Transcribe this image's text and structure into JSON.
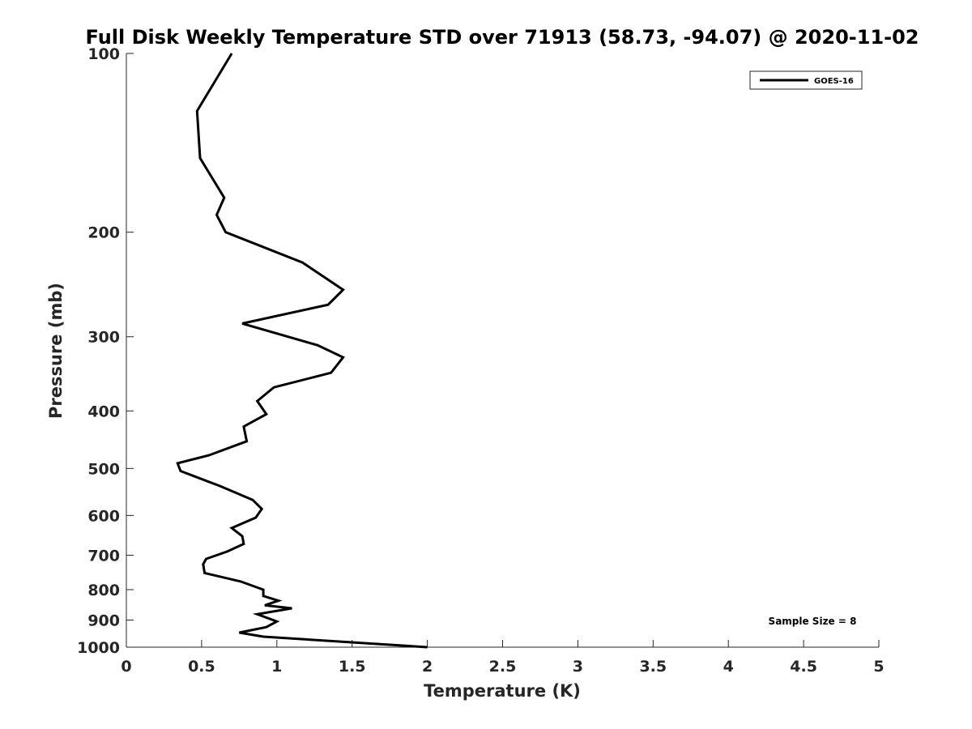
{
  "chart_data": {
    "type": "line",
    "title": "Full Disk Weekly Temperature STD over 71913 (58.73, -94.07) @ 2020-11-02",
    "xlabel": "Temperature (K)",
    "ylabel": "Pressure (mb)",
    "xlim": [
      0,
      5
    ],
    "ylim": [
      100,
      1000
    ],
    "y_scale": "log",
    "y_reversed": true,
    "grid": false,
    "legend_position": "top-right",
    "x_ticks": [
      "0",
      "0.5",
      "1",
      "1.5",
      "2",
      "2.5",
      "3",
      "3.5",
      "4",
      "4.5",
      "5"
    ],
    "y_ticks": [
      "100",
      "200",
      "300",
      "400",
      "500",
      "600",
      "700",
      "800",
      "900",
      "1000"
    ],
    "series": [
      {
        "name": "GOES-16",
        "color": "#000000",
        "points": [
          [
            0.7,
            100
          ],
          [
            0.47,
            125
          ],
          [
            0.49,
            150
          ],
          [
            0.65,
            175
          ],
          [
            0.6,
            187
          ],
          [
            0.66,
            200
          ],
          [
            1.17,
            225
          ],
          [
            1.44,
            250
          ],
          [
            1.34,
            265
          ],
          [
            0.77,
            285
          ],
          [
            1.27,
            310
          ],
          [
            1.44,
            325
          ],
          [
            1.36,
            345
          ],
          [
            0.98,
            365
          ],
          [
            0.87,
            385
          ],
          [
            0.93,
            405
          ],
          [
            0.78,
            425
          ],
          [
            0.8,
            450
          ],
          [
            0.55,
            475
          ],
          [
            0.34,
            490
          ],
          [
            0.36,
            505
          ],
          [
            0.62,
            535
          ],
          [
            0.84,
            565
          ],
          [
            0.9,
            585
          ],
          [
            0.86,
            605
          ],
          [
            0.7,
            630
          ],
          [
            0.77,
            650
          ],
          [
            0.78,
            670
          ],
          [
            0.67,
            690
          ],
          [
            0.53,
            710
          ],
          [
            0.51,
            725
          ],
          [
            0.52,
            750
          ],
          [
            0.76,
            775
          ],
          [
            0.91,
            800
          ],
          [
            0.91,
            820
          ],
          [
            1.01,
            835
          ],
          [
            0.92,
            850
          ],
          [
            1.1,
            860
          ],
          [
            0.87,
            880
          ],
          [
            1.0,
            905
          ],
          [
            0.93,
            925
          ],
          [
            0.75,
            945
          ],
          [
            0.91,
            960
          ],
          [
            2.0,
            1000
          ]
        ]
      }
    ],
    "annotations": [
      "Sample Size = 8"
    ]
  }
}
